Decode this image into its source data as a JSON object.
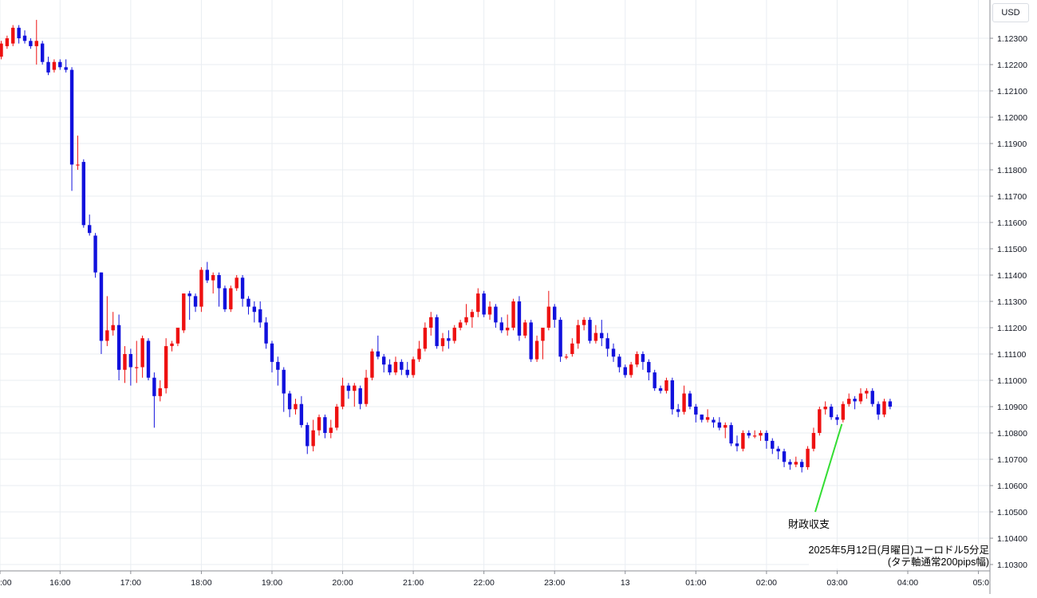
{
  "header": {
    "currency": "USD"
  },
  "caption": {
    "line1": "2025年5月12日(月曜日)ユーロドル5分足",
    "line2": "(タテ軸通常200pips幅)"
  },
  "annotation": {
    "label": "財政収支",
    "color": "#33dd33"
  },
  "chart_data": {
    "type": "candlestick",
    "title": "",
    "xlabel": "",
    "ylabel": "",
    "ylim": [
      1.103,
      1.1238
    ],
    "grid": true,
    "colors": {
      "up": "#ee1111",
      "down": "#1111dd",
      "grid": "#e9edf2"
    },
    "y_ticks": [
      "1.12300",
      "1.12200",
      "1.12100",
      "1.12000",
      "1.11900",
      "1.11800",
      "1.11700",
      "1.11600",
      "1.11500",
      "1.11400",
      "1.11300",
      "1.11200",
      "1.11100",
      "1.11000",
      "1.10900",
      "1.10800",
      "1.10700",
      "1.10600",
      "1.10500",
      "1.10400",
      "1.10300"
    ],
    "x_ticks": [
      {
        "label": ":00",
        "index": -0.2
      },
      {
        "label": "16:00",
        "index": 10
      },
      {
        "label": "17:00",
        "index": 22
      },
      {
        "label": "18:00",
        "index": 34
      },
      {
        "label": "19:00",
        "index": 46
      },
      {
        "label": "20:00",
        "index": 58
      },
      {
        "label": "21:00",
        "index": 70
      },
      {
        "label": "22:00",
        "index": 82
      },
      {
        "label": "23:00",
        "index": 94
      },
      {
        "label": "13",
        "index": 106
      },
      {
        "label": "01:00",
        "index": 118
      },
      {
        "label": "02:00",
        "index": 130
      },
      {
        "label": "03:00",
        "index": 142
      },
      {
        "label": "04:00",
        "index": 154
      },
      {
        "label": "05:0",
        "index": 166
      }
    ],
    "annotation_index": 142.8,
    "candles": [
      [
        1.1223,
        1.1229,
        1.1222,
        1.1228
      ],
      [
        1.1227,
        1.1231,
        1.1226,
        1.123
      ],
      [
        1.1228,
        1.1235,
        1.1227,
        1.1234
      ],
      [
        1.1234,
        1.1235,
        1.1228,
        1.123
      ],
      [
        1.1231,
        1.1233,
        1.1228,
        1.1229
      ],
      [
        1.1229,
        1.123,
        1.1226,
        1.1227
      ],
      [
        1.1227,
        1.1237,
        1.122,
        1.1229
      ],
      [
        1.1228,
        1.1229,
        1.122,
        1.1221
      ],
      [
        1.1221,
        1.1223,
        1.1216,
        1.1217
      ],
      [
        1.1218,
        1.1222,
        1.1217,
        1.1221
      ],
      [
        1.1221,
        1.1222,
        1.1218,
        1.1219
      ],
      [
        1.1219,
        1.1222,
        1.1217,
        1.1218
      ],
      [
        1.1218,
        1.1219,
        1.1172,
        1.1182
      ],
      [
        1.1182,
        1.1193,
        1.118,
        1.1182
      ],
      [
        1.1183,
        1.1184,
        1.1158,
        1.1159
      ],
      [
        1.1159,
        1.1163,
        1.1155,
        1.1156
      ],
      [
        1.1155,
        1.1156,
        1.1139,
        1.1141
      ],
      [
        1.1141,
        1.1141,
        1.111,
        1.1115
      ],
      [
        1.1115,
        1.1132,
        1.1113,
        1.1119
      ],
      [
        1.1119,
        1.1126,
        1.1117,
        1.1121
      ],
      [
        1.1121,
        1.1125,
        1.11,
        1.1104
      ],
      [
        1.1104,
        1.1113,
        1.1099,
        1.111
      ],
      [
        1.111,
        1.1112,
        1.1098,
        1.1105
      ],
      [
        1.1105,
        1.1115,
        1.1099,
        1.1105
      ],
      [
        1.1105,
        1.1117,
        1.1101,
        1.1116
      ],
      [
        1.1115,
        1.1116,
        1.11,
        1.1101
      ],
      [
        1.1101,
        1.1103,
        1.1082,
        1.1094
      ],
      [
        1.1094,
        1.11,
        1.1092,
        1.1097
      ],
      [
        1.1097,
        1.1116,
        1.1095,
        1.1113
      ],
      [
        1.1113,
        1.1115,
        1.1111,
        1.1114
      ],
      [
        1.1114,
        1.112,
        1.1113,
        1.112
      ],
      [
        1.1119,
        1.1133,
        1.1118,
        1.1133
      ],
      [
        1.1133,
        1.1134,
        1.1123,
        1.1132
      ],
      [
        1.1132,
        1.1133,
        1.1126,
        1.1128
      ],
      [
        1.1128,
        1.1143,
        1.1126,
        1.1142
      ],
      [
        1.1142,
        1.1145,
        1.1137,
        1.1138
      ],
      [
        1.1138,
        1.1141,
        1.1133,
        1.114
      ],
      [
        1.114,
        1.1141,
        1.1128,
        1.1135
      ],
      [
        1.1135,
        1.1136,
        1.1126,
        1.1127
      ],
      [
        1.1127,
        1.1136,
        1.1126,
        1.1135
      ],
      [
        1.1135,
        1.114,
        1.1134,
        1.1139
      ],
      [
        1.1139,
        1.114,
        1.1128,
        1.1131
      ],
      [
        1.1131,
        1.1132,
        1.1125,
        1.1128
      ],
      [
        1.1128,
        1.113,
        1.1122,
        1.1126
      ],
      [
        1.1127,
        1.113,
        1.112,
        1.1122
      ],
      [
        1.1122,
        1.1124,
        1.1112,
        1.1114
      ],
      [
        1.1114,
        1.1115,
        1.1103,
        1.1107
      ],
      [
        1.1107,
        1.1109,
        1.1098,
        1.1104
      ],
      [
        1.1104,
        1.1105,
        1.1088,
        1.1095
      ],
      [
        1.1095,
        1.1096,
        1.1086,
        1.1089
      ],
      [
        1.1089,
        1.1093,
        1.1087,
        1.1091
      ],
      [
        1.1091,
        1.1094,
        1.1082,
        1.1083
      ],
      [
        1.1083,
        1.1084,
        1.1072,
        1.1075
      ],
      [
        1.1075,
        1.1085,
        1.1073,
        1.1081
      ],
      [
        1.1081,
        1.1087,
        1.1079,
        1.1086
      ],
      [
        1.1086,
        1.1087,
        1.1078,
        1.108
      ],
      [
        1.108,
        1.1085,
        1.1078,
        1.1082
      ],
      [
        1.1082,
        1.1091,
        1.1081,
        1.109
      ],
      [
        1.109,
        1.1101,
        1.1089,
        1.1098
      ],
      [
        1.1098,
        1.1099,
        1.1093,
        1.1096
      ],
      [
        1.1096,
        1.1099,
        1.109,
        1.1098
      ],
      [
        1.1097,
        1.1098,
        1.1089,
        1.1091
      ],
      [
        1.1091,
        1.1104,
        1.109,
        1.1101
      ],
      [
        1.1101,
        1.1112,
        1.11,
        1.1111
      ],
      [
        1.1111,
        1.1117,
        1.1108,
        1.1109
      ],
      [
        1.1109,
        1.111,
        1.1103,
        1.1106
      ],
      [
        1.1106,
        1.1108,
        1.1102,
        1.1103
      ],
      [
        1.1103,
        1.1109,
        1.1102,
        1.1107
      ],
      [
        1.1107,
        1.1108,
        1.1102,
        1.1104
      ],
      [
        1.1104,
        1.1107,
        1.1101,
        1.1102
      ],
      [
        1.1102,
        1.1109,
        1.1101,
        1.1108
      ],
      [
        1.1108,
        1.1115,
        1.1107,
        1.1112
      ],
      [
        1.1112,
        1.1122,
        1.1111,
        1.112
      ],
      [
        1.112,
        1.1126,
        1.1117,
        1.1124
      ],
      [
        1.1124,
        1.1125,
        1.1112,
        1.1113
      ],
      [
        1.1113,
        1.1118,
        1.1111,
        1.1116
      ],
      [
        1.1116,
        1.1119,
        1.1112,
        1.1115
      ],
      [
        1.1115,
        1.1121,
        1.1114,
        1.112
      ],
      [
        1.112,
        1.1123,
        1.1119,
        1.1122
      ],
      [
        1.1122,
        1.1129,
        1.1121,
        1.1124
      ],
      [
        1.1124,
        1.1127,
        1.112,
        1.1126
      ],
      [
        1.1126,
        1.1135,
        1.1124,
        1.1133
      ],
      [
        1.1133,
        1.1134,
        1.1124,
        1.1125
      ],
      [
        1.1125,
        1.113,
        1.1123,
        1.1128
      ],
      [
        1.1128,
        1.1129,
        1.112,
        1.1122
      ],
      [
        1.1122,
        1.1124,
        1.1118,
        1.1119
      ],
      [
        1.1119,
        1.1125,
        1.1117,
        1.112
      ],
      [
        1.112,
        1.1131,
        1.1119,
        1.113
      ],
      [
        1.113,
        1.1132,
        1.1115,
        1.1117
      ],
      [
        1.1117,
        1.1123,
        1.1116,
        1.1122
      ],
      [
        1.1122,
        1.1123,
        1.1107,
        1.1108
      ],
      [
        1.1108,
        1.1117,
        1.1107,
        1.1115
      ],
      [
        1.1115,
        1.1119,
        1.1108,
        1.112
      ],
      [
        1.112,
        1.1134,
        1.1119,
        1.1128
      ],
      [
        1.1128,
        1.1129,
        1.112,
        1.1123
      ],
      [
        1.1123,
        1.1124,
        1.1107,
        1.1109
      ],
      [
        1.1109,
        1.111,
        1.1108,
        1.1109
      ],
      [
        1.111,
        1.1116,
        1.1109,
        1.1114
      ],
      [
        1.1114,
        1.1123,
        1.1112,
        1.1121
      ],
      [
        1.1121,
        1.1124,
        1.1119,
        1.1123
      ],
      [
        1.1123,
        1.1124,
        1.1114,
        1.1115
      ],
      [
        1.1115,
        1.1121,
        1.1114,
        1.1118
      ],
      [
        1.1118,
        1.1123,
        1.1113,
        1.1116
      ],
      [
        1.1116,
        1.1118,
        1.1109,
        1.1112
      ],
      [
        1.1112,
        1.1114,
        1.1107,
        1.1109
      ],
      [
        1.1109,
        1.111,
        1.1103,
        1.1105
      ],
      [
        1.1105,
        1.1106,
        1.1101,
        1.1102
      ],
      [
        1.1102,
        1.1107,
        1.1101,
        1.1106
      ],
      [
        1.1106,
        1.1111,
        1.1105,
        1.111
      ],
      [
        1.111,
        1.1111,
        1.1104,
        1.1107
      ],
      [
        1.1107,
        1.1108,
        1.11,
        1.1103
      ],
      [
        1.1103,
        1.1104,
        1.1096,
        1.1097
      ],
      [
        1.1097,
        1.1098,
        1.1095,
        1.1096
      ],
      [
        1.1096,
        1.1101,
        1.1095,
        1.11
      ],
      [
        1.11,
        1.1101,
        1.1087,
        1.1089
      ],
      [
        1.1089,
        1.1091,
        1.1086,
        1.1088
      ],
      [
        1.1088,
        1.1098,
        1.1087,
        1.1095
      ],
      [
        1.1095,
        1.1096,
        1.1089,
        1.109
      ],
      [
        1.109,
        1.1091,
        1.1084,
        1.1087
      ],
      [
        1.1087,
        1.1087,
        1.1084,
        1.1085
      ],
      [
        1.1085,
        1.1089,
        1.1084,
        1.1086
      ],
      [
        1.1085,
        1.1086,
        1.1082,
        1.1084
      ],
      [
        1.1084,
        1.1086,
        1.1081,
        1.1082
      ],
      [
        1.1082,
        1.1084,
        1.1078,
        1.1083
      ],
      [
        1.1083,
        1.1084,
        1.1075,
        1.1076
      ],
      [
        1.1076,
        1.1079,
        1.1073,
        1.1075
      ],
      [
        1.1074,
        1.1081,
        1.1073,
        1.108
      ],
      [
        1.108,
        1.1081,
        1.1078,
        1.1079
      ],
      [
        1.1079,
        1.1081,
        1.1078,
        1.1079
      ],
      [
        1.1079,
        1.1081,
        1.1077,
        1.108
      ],
      [
        1.108,
        1.1081,
        1.1074,
        1.1077
      ],
      [
        1.1077,
        1.1078,
        1.1072,
        1.1074
      ],
      [
        1.1074,
        1.1075,
        1.107,
        1.1073
      ],
      [
        1.1073,
        1.1074,
        1.1067,
        1.1069
      ],
      [
        1.1069,
        1.107,
        1.1066,
        1.1068
      ],
      [
        1.1068,
        1.1071,
        1.1067,
        1.1069
      ],
      [
        1.1069,
        1.107,
        1.1065,
        1.1067
      ],
      [
        1.1067,
        1.1075,
        1.1066,
        1.1074
      ],
      [
        1.1074,
        1.1082,
        1.1073,
        1.108
      ],
      [
        1.108,
        1.109,
        1.1079,
        1.1089
      ],
      [
        1.1089,
        1.1092,
        1.1087,
        1.109
      ],
      [
        1.109,
        1.1091,
        1.1085,
        1.1086
      ],
      [
        1.1086,
        1.1087,
        1.1083,
        1.1085
      ],
      [
        1.1085,
        1.1092,
        1.1084,
        1.1091
      ],
      [
        1.1091,
        1.1095,
        1.109,
        1.1093
      ],
      [
        1.1093,
        1.1094,
        1.1089,
        1.1092
      ],
      [
        1.1092,
        1.1097,
        1.1091,
        1.1095
      ],
      [
        1.1095,
        1.1097,
        1.1093,
        1.1096
      ],
      [
        1.1096,
        1.1097,
        1.109,
        1.1091
      ],
      [
        1.1091,
        1.1092,
        1.1085,
        1.1087
      ],
      [
        1.1087,
        1.1093,
        1.1086,
        1.1092
      ],
      [
        1.1092,
        1.1093,
        1.1089,
        1.109
      ]
    ]
  }
}
